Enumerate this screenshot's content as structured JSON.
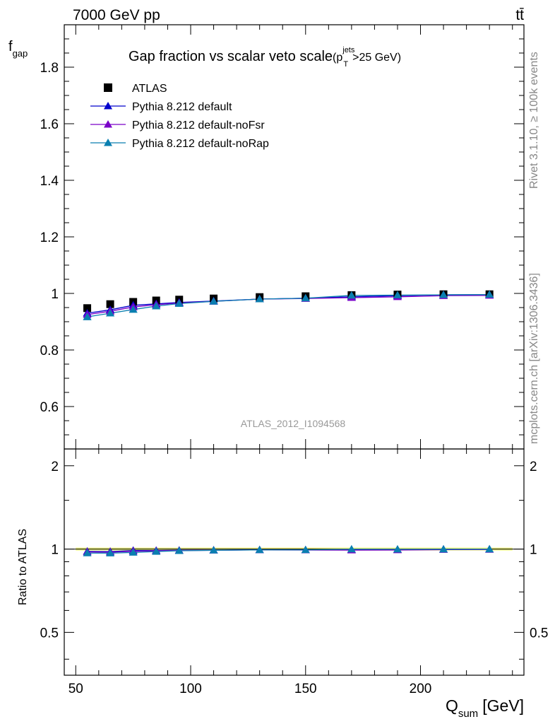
{
  "header": {
    "energy_label": "7000 GeV pp",
    "process_label": "tt̄"
  },
  "side_labels": {
    "rivet": "Rivet 3.1.10, ≥ 100k events",
    "source": "mcplots.cern.ch [arXiv:1306.3436]"
  },
  "chart_data": {
    "type": "line",
    "title_main": "Gap fraction vs scalar veto scale",
    "title_cond_base": "(p",
    "title_cond_sup": "jets",
    "title_cond_sub": "T",
    "title_cond_rest": ">25 GeV)",
    "analysis_id": "ATLAS_2012_I1094568",
    "ylabel_main": "f",
    "ylabel_main_sub": "gap",
    "ylabel_ratio": "Ratio to ATLAS",
    "xlabel_main": "Q",
    "xlabel_sub": "sum",
    "xlabel_unit": "[GeV]",
    "x": [
      55,
      65,
      75,
      85,
      95,
      110,
      130,
      150,
      170,
      190,
      210,
      230
    ],
    "xlim": [
      45,
      245
    ],
    "ylim": [
      0.45,
      1.95
    ],
    "ratio_ylim": [
      0.35,
      2.3
    ],
    "x_ticks": [
      50,
      100,
      150,
      200
    ],
    "y_ticks": [
      0.6,
      0.8,
      1,
      1.2,
      1.4,
      1.6,
      1.8
    ],
    "y_tick_labels": [
      "0.6",
      "0.8",
      "1",
      "1.2",
      "1.4",
      "1.6",
      "1.8"
    ],
    "ratio_ticks": [
      0.5,
      1,
      2
    ],
    "ratio_tick_labels": [
      "0.5",
      "1",
      "2"
    ],
    "legend_position": "top-left",
    "data": {
      "name": "ATLAS",
      "color": "#000000",
      "values": [
        0.948,
        0.962,
        0.97,
        0.975,
        0.978,
        0.982,
        0.987,
        0.99,
        0.994,
        0.996,
        0.997,
        0.997
      ]
    },
    "series": [
      {
        "name": "Pythia 8.212 default",
        "color": "#0000cc",
        "values": [
          0.93,
          0.942,
          0.958,
          0.963,
          0.968,
          0.973,
          0.98,
          0.983,
          0.988,
          0.992,
          0.995,
          0.996
        ]
      },
      {
        "name": "Pythia 8.212 default-noFsr",
        "color": "#7a00c8",
        "values": [
          0.925,
          0.937,
          0.952,
          0.96,
          0.966,
          0.972,
          0.98,
          0.982,
          0.985,
          0.988,
          0.992,
          0.993
        ]
      },
      {
        "name": "Pythia 8.212 default-noRap",
        "color": "#0a7fb0",
        "values": [
          0.917,
          0.93,
          0.943,
          0.955,
          0.964,
          0.972,
          0.98,
          0.983,
          0.993,
          0.994,
          0.995,
          0.996
        ]
      }
    ]
  }
}
